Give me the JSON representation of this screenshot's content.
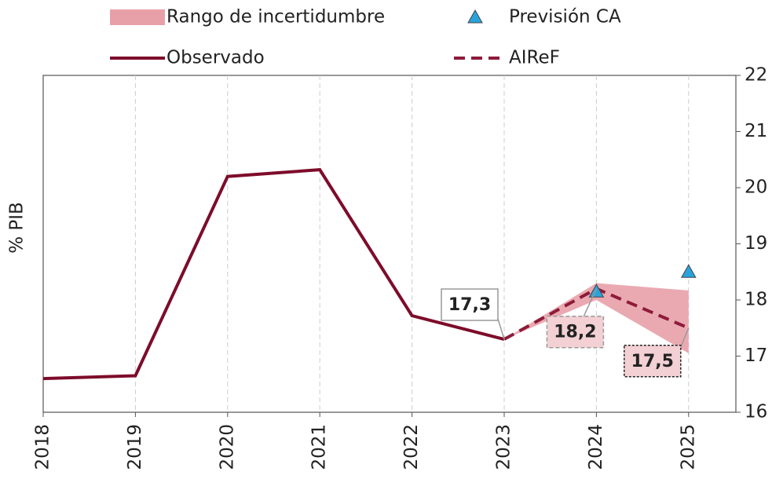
{
  "chart_data": {
    "type": "line",
    "y_label": "% PIB",
    "categories": [
      "2018",
      "2019",
      "2020",
      "2021",
      "2022",
      "2023",
      "2024",
      "2025"
    ],
    "ylim": [
      16,
      22
    ],
    "yticks": [
      16,
      17,
      18,
      19,
      20,
      21,
      22
    ],
    "grid": true,
    "y_axis_side": "right",
    "series": [
      {
        "name": "Rango de incertidumbre",
        "kind": "band",
        "color": "#e8a0a8",
        "lower": [
          null,
          null,
          null,
          null,
          null,
          17.3,
          18.0,
          17.05
        ],
        "upper": [
          null,
          null,
          null,
          null,
          null,
          17.3,
          18.3,
          18.17
        ]
      },
      {
        "name": "Previsión CA",
        "kind": "marker",
        "color": "#29a3dc",
        "values": [
          null,
          null,
          null,
          null,
          null,
          null,
          18.15,
          18.5
        ]
      },
      {
        "name": "Observado",
        "kind": "line",
        "color": "#7d0c2a",
        "values": [
          16.6,
          16.65,
          20.2,
          20.32,
          17.72,
          17.3,
          null,
          null
        ]
      },
      {
        "name": "AIReF",
        "kind": "dashed",
        "color": "#8e1b3a",
        "values": [
          null,
          null,
          null,
          null,
          null,
          17.3,
          18.2,
          17.5
        ],
        "value_labels": [
          null,
          null,
          null,
          null,
          null,
          "17,3",
          "18,2",
          "17,5"
        ]
      }
    ]
  }
}
